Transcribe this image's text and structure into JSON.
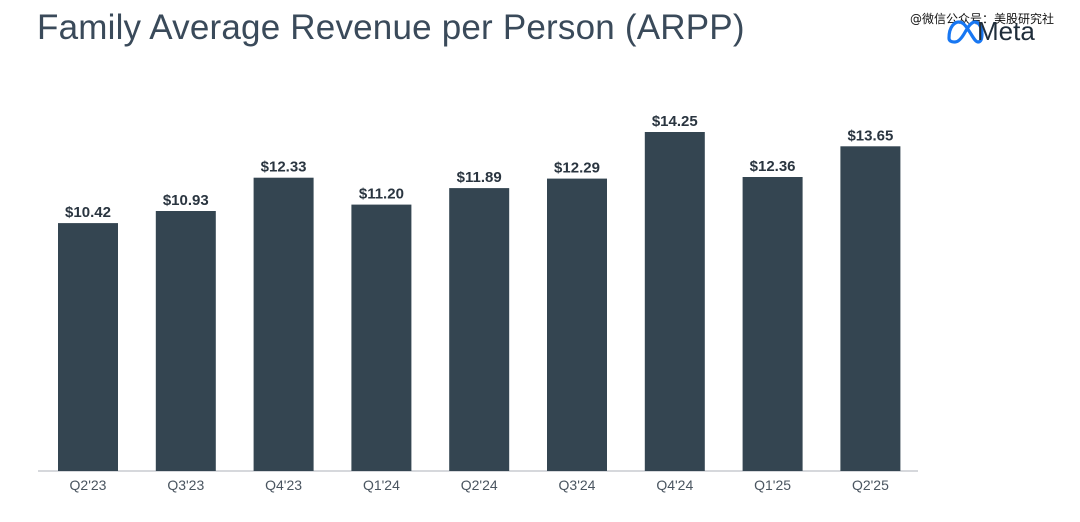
{
  "title": "Family Average Revenue per Person (ARPP)",
  "logo": {
    "text": "Meta",
    "icon": "meta-infinity-icon"
  },
  "watermark": "@微信公众号：美股研究社",
  "colors": {
    "bar": "#344551",
    "axis": "#c8ccd0",
    "title": "#3a4a5a",
    "label": "#2a3540",
    "tick": "#4a5560"
  },
  "chart_data": {
    "type": "bar",
    "title": "Family Average Revenue per Person (ARPP)",
    "xlabel": "",
    "ylabel": "",
    "categories": [
      "Q2'23",
      "Q3'23",
      "Q4'23",
      "Q1'24",
      "Q2'24",
      "Q3'24",
      "Q4'24",
      "Q1'25",
      "Q2'25"
    ],
    "values": [
      10.42,
      10.93,
      12.33,
      11.2,
      11.89,
      12.29,
      14.25,
      12.36,
      13.65
    ],
    "value_labels": [
      "$10.42",
      "$10.93",
      "$12.33",
      "$11.20",
      "$11.89",
      "$12.29",
      "$14.25",
      "$12.36",
      "$13.65"
    ],
    "ylim": [
      0,
      14.25
    ],
    "grid": false,
    "legend": "none"
  }
}
